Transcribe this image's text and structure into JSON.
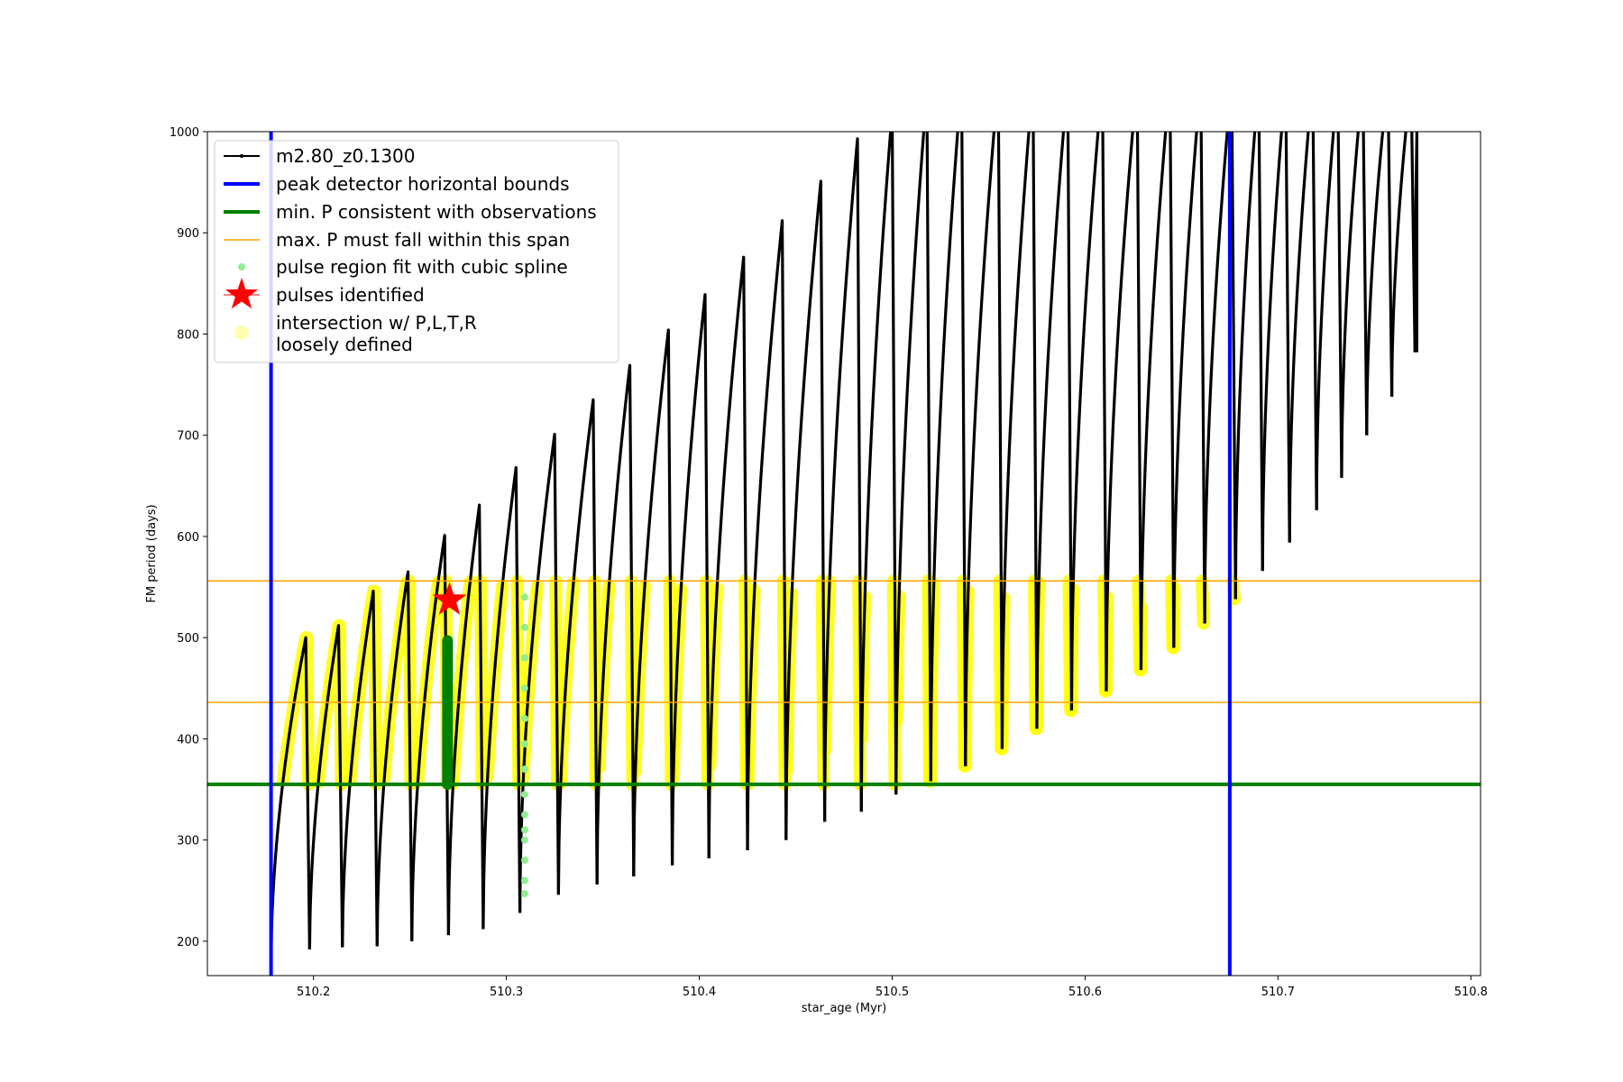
{
  "chart_data": {
    "type": "line",
    "xlabel": "star_age (Myr)",
    "ylabel": "FM period (days)",
    "xlim": [
      510.145,
      510.805
    ],
    "ylim": [
      166,
      1000
    ],
    "xticks": [
      510.2,
      510.3,
      510.4,
      510.5,
      510.6,
      510.7,
      510.8
    ],
    "xtick_labels": [
      "510.2",
      "510.3",
      "510.4",
      "510.5",
      "510.6",
      "510.7",
      "510.8"
    ],
    "yticks": [
      200,
      300,
      400,
      500,
      600,
      700,
      800,
      900,
      1000
    ],
    "ytick_labels": [
      "200",
      "300",
      "400",
      "500",
      "600",
      "700",
      "800",
      "900",
      "1000"
    ],
    "grid": false,
    "legend_position": "top-left",
    "colors": {
      "model": "#000000",
      "bounds": "#0000ff",
      "min_p": "#008000",
      "max_p": "#ffa500",
      "spline": "#90ee90",
      "pulse": "#ff0000",
      "intersection": "#ffff00"
    },
    "legend": [
      {
        "key": "model",
        "label": "m2.80_z0.1300"
      },
      {
        "key": "bounds",
        "label": "peak detector horizontal bounds"
      },
      {
        "key": "min_p",
        "label": "min. P consistent with observations"
      },
      {
        "key": "max_p",
        "label": "max. P must fall within this span"
      },
      {
        "key": "spline",
        "label": "pulse region fit with cubic spline"
      },
      {
        "key": "pulse",
        "label": "pulses identified"
      },
      {
        "key": "intersection",
        "label": "intersection w/ P,L,T,R\nloosely defined"
      }
    ],
    "vertical_bounds_x": [
      510.178,
      510.675
    ],
    "min_period": 355,
    "max_period_span": [
      436,
      556
    ],
    "series_name": "m2.80_z0.1300",
    "pulse_cycles": [
      {
        "start": 510.178,
        "min": 180,
        "peak": 500,
        "peak_x": 510.196,
        "end": 510.198
      },
      {
        "start": 510.198,
        "min": 192,
        "peak": 512,
        "peak_x": 510.213,
        "end": 510.215
      },
      {
        "start": 510.215,
        "min": 194,
        "peak": 546,
        "peak_x": 510.231,
        "end": 510.233
      },
      {
        "start": 510.233,
        "min": 195,
        "peak": 565,
        "peak_x": 510.249,
        "end": 510.251
      },
      {
        "start": 510.251,
        "min": 200,
        "peak": 601,
        "peak_x": 510.268,
        "end": 510.27
      },
      {
        "start": 510.27,
        "min": 206,
        "peak": 631,
        "peak_x": 510.286,
        "end": 510.288
      },
      {
        "start": 510.288,
        "min": 212,
        "peak": 668,
        "peak_x": 510.305,
        "end": 510.307
      },
      {
        "start": 510.307,
        "min": 228,
        "peak": 701,
        "peak_x": 510.325,
        "end": 510.327
      },
      {
        "start": 510.327,
        "min": 246,
        "peak": 735,
        "peak_x": 510.345,
        "end": 510.347
      },
      {
        "start": 510.347,
        "min": 256,
        "peak": 769,
        "peak_x": 510.364,
        "end": 510.366
      },
      {
        "start": 510.366,
        "min": 264,
        "peak": 804,
        "peak_x": 510.384,
        "end": 510.386
      },
      {
        "start": 510.386,
        "min": 275,
        "peak": 839,
        "peak_x": 510.403,
        "end": 510.405
      },
      {
        "start": 510.405,
        "min": 282,
        "peak": 876,
        "peak_x": 510.423,
        "end": 510.425
      },
      {
        "start": 510.425,
        "min": 290,
        "peak": 912,
        "peak_x": 510.443,
        "end": 510.445
      },
      {
        "start": 510.445,
        "min": 300,
        "peak": 951,
        "peak_x": 510.463,
        "end": 510.465
      },
      {
        "start": 510.465,
        "min": 318,
        "peak": 993,
        "peak_x": 510.482,
        "end": 510.484
      },
      {
        "start": 510.484,
        "min": 328,
        "peak": 1020,
        "peak_x": 510.5,
        "end": 510.502
      },
      {
        "start": 510.502,
        "min": 345,
        "peak": 1040,
        "peak_x": 510.518,
        "end": 510.52
      },
      {
        "start": 510.52,
        "min": 358,
        "peak": 1050,
        "peak_x": 510.536,
        "end": 510.538
      },
      {
        "start": 510.538,
        "min": 373,
        "peak": 1050,
        "peak_x": 510.555,
        "end": 510.557
      },
      {
        "start": 510.557,
        "min": 390,
        "peak": 1050,
        "peak_x": 510.573,
        "end": 510.575
      },
      {
        "start": 510.575,
        "min": 410,
        "peak": 1050,
        "peak_x": 510.591,
        "end": 510.593
      },
      {
        "start": 510.593,
        "min": 428,
        "peak": 1050,
        "peak_x": 510.609,
        "end": 510.611
      },
      {
        "start": 510.611,
        "min": 447,
        "peak": 1050,
        "peak_x": 510.627,
        "end": 510.629
      },
      {
        "start": 510.629,
        "min": 468,
        "peak": 1050,
        "peak_x": 510.644,
        "end": 510.646
      },
      {
        "start": 510.646,
        "min": 490,
        "peak": 1050,
        "peak_x": 510.66,
        "end": 510.662
      },
      {
        "start": 510.662,
        "min": 514,
        "peak": 1050,
        "peak_x": 510.676,
        "end": 510.678
      },
      {
        "start": 510.678,
        "min": 538,
        "peak": 1050,
        "peak_x": 510.69,
        "end": 510.692
      },
      {
        "start": 510.692,
        "min": 566,
        "peak": 1050,
        "peak_x": 510.704,
        "end": 510.706
      },
      {
        "start": 510.706,
        "min": 594,
        "peak": 1050,
        "peak_x": 510.718,
        "end": 510.72
      },
      {
        "start": 510.72,
        "min": 626,
        "peak": 1050,
        "peak_x": 510.731,
        "end": 510.733
      },
      {
        "start": 510.733,
        "min": 658,
        "peak": 1050,
        "peak_x": 510.744,
        "end": 510.746
      },
      {
        "start": 510.746,
        "min": 700,
        "peak": 1050,
        "peak_x": 510.757,
        "end": 510.759
      },
      {
        "start": 510.759,
        "min": 738,
        "peak": 1050,
        "peak_x": 510.769,
        "end": 510.771
      },
      {
        "start": 510.771,
        "min": 782,
        "peak": 1000,
        "peak_x": 510.772,
        "end": 510.772
      }
    ],
    "pulses_identified": [
      {
        "x": 510.2705,
        "y": 537
      }
    ],
    "spline_fit": {
      "dark_segment": {
        "x": 510.2695,
        "y_range": [
          355,
          497
        ]
      },
      "light_points": [
        {
          "x": 510.3095,
          "y": 540
        },
        {
          "x": 510.3095,
          "y": 510
        },
        {
          "x": 510.3095,
          "y": 480
        },
        {
          "x": 510.3095,
          "y": 450
        },
        {
          "x": 510.3095,
          "y": 420
        },
        {
          "x": 510.3095,
          "y": 395
        },
        {
          "x": 510.3095,
          "y": 370
        },
        {
          "x": 510.3095,
          "y": 345
        },
        {
          "x": 510.3095,
          "y": 325
        },
        {
          "x": 510.3095,
          "y": 310
        },
        {
          "x": 510.3095,
          "y": 300
        },
        {
          "x": 510.3095,
          "y": 280
        },
        {
          "x": 510.3095,
          "y": 260
        },
        {
          "x": 510.3095,
          "y": 247
        }
      ]
    }
  }
}
